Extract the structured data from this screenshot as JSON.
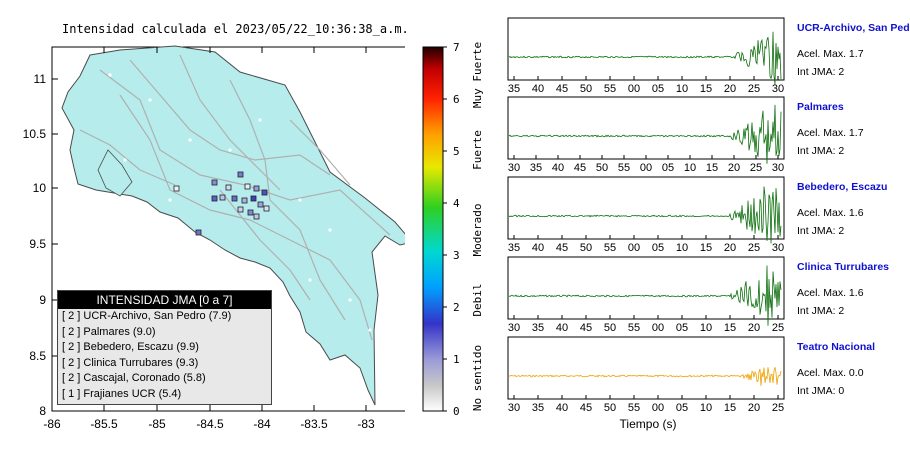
{
  "map": {
    "title": "Intensidad calculada el 2023/05/22_10:36:38_a.m.",
    "lat_ticks": [
      "11",
      "10.5",
      "10",
      "9.5",
      "9",
      "8.5",
      "8"
    ],
    "lon_ticks": [
      "-86",
      "-85.5",
      "-85",
      "-84.5",
      "-84",
      "-83.5",
      "-83"
    ],
    "colors": {
      "land": "#b6ecec",
      "sea": "#ffffff",
      "roads": "#b0b0b0"
    }
  },
  "colorbar": {
    "ticks": [
      "7",
      "6",
      "5",
      "4",
      "3",
      "2",
      "1",
      "0"
    ],
    "labels": [
      "Muy Fuerte",
      "Fuerte",
      "Moderado",
      "Debil",
      "No sentido"
    ]
  },
  "legend": {
    "title": "INTENSIDAD JMA [0 a 7]",
    "rows": [
      {
        "jma": "2",
        "name": "UCR-Archivo, San Pedro (7.9)"
      },
      {
        "jma": "2",
        "name": "Palmares (9.0)"
      },
      {
        "jma": "2",
        "name": "Bebedero, Escazu (9.9)"
      },
      {
        "jma": "2",
        "name": "Clinica Turrubares (9.3)"
      },
      {
        "jma": "2",
        "name": "Cascajal, Coronado (5.8)"
      },
      {
        "jma": "1",
        "name": "Frajianes UCR (5.4)"
      }
    ]
  },
  "traces": [
    {
      "station": "UCR-Archivo, San Pedro",
      "accel": "Acel. Max. 1.7",
      "jma": "Int JMA: 2",
      "ticks": [
        "35",
        "40",
        "45",
        "50",
        "55",
        "00",
        "05",
        "10",
        "15",
        "20",
        "25",
        "30"
      ],
      "color": "#0a6e0a"
    },
    {
      "station": "Palmares",
      "accel": "Acel. Max. 1.7",
      "jma": "Int JMA: 2",
      "ticks": [
        "30",
        "35",
        "40",
        "45",
        "50",
        "55",
        "00",
        "05",
        "10",
        "15",
        "20",
        "25",
        "30"
      ],
      "color": "#0a6e0a"
    },
    {
      "station": "Bebedero, Escazu",
      "accel": "Acel. Max. 1.6",
      "jma": "Int JMA: 2",
      "ticks": [
        "35",
        "40",
        "45",
        "50",
        "55",
        "00",
        "05",
        "10",
        "15",
        "20",
        "25",
        "30"
      ],
      "color": "#0a6e0a"
    },
    {
      "station": "Clinica Turrubares",
      "accel": "Acel. Max. 1.6",
      "jma": "Int JMA: 2",
      "ticks": [
        "30",
        "35",
        "40",
        "45",
        "50",
        "55",
        "00",
        "05",
        "10",
        "15",
        "20",
        "25"
      ],
      "color": "#0a6e0a"
    },
    {
      "station": "Teatro Nacional",
      "accel": "Acel. Max. 0.0",
      "jma": "Int JMA: 0",
      "ticks": [
        "30",
        "35",
        "40",
        "45",
        "50",
        "55",
        "00",
        "05",
        "10",
        "15",
        "20",
        "25"
      ],
      "color": "#f0a000"
    }
  ],
  "x_axis_label": "Tiempo (s)"
}
